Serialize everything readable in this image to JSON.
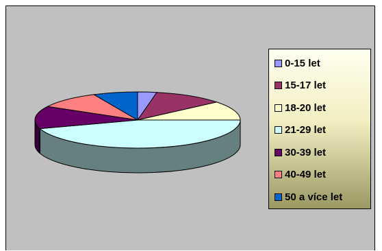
{
  "chart_data": {
    "type": "pie",
    "style": "3d",
    "categories": [
      "0-15 let",
      "15-17 let",
      "18-20 let",
      "21-29 let",
      "30-39 let",
      "40-49 let",
      "50 a více let"
    ],
    "values": [
      3,
      11,
      11,
      45,
      13,
      10,
      7
    ],
    "colors": [
      "#9999ff",
      "#993366",
      "#ffffcc",
      "#ccffff",
      "#660066",
      "#ff8080",
      "#0066cc"
    ],
    "legend_position": "right",
    "background": "#c0c0c0"
  }
}
